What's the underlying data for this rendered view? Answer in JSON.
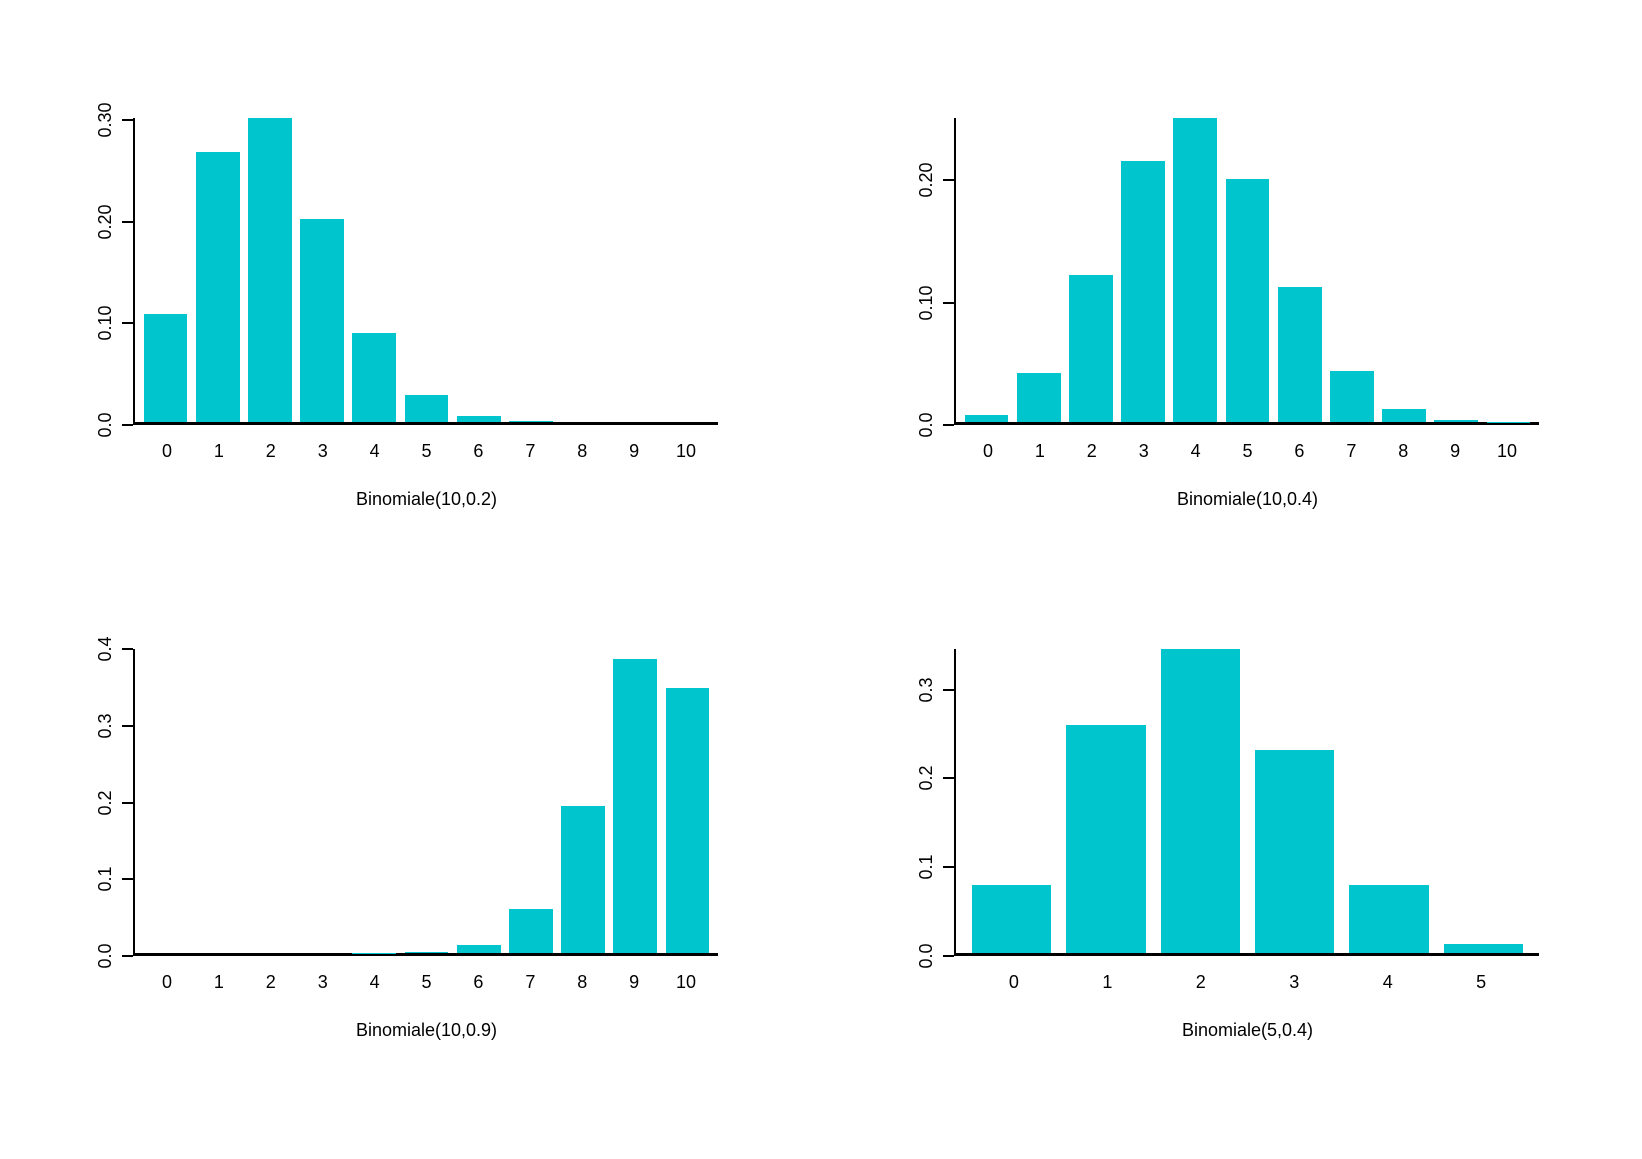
{
  "page": {
    "background": "#ffffff",
    "accent_color": "#00C5CD",
    "layout": "2x2 grid of barplots"
  },
  "chart_data": [
    {
      "type": "bar",
      "title": "",
      "xlabel": "Binomiale(10,0.2)",
      "ylabel": "",
      "categories": [
        "0",
        "1",
        "2",
        "3",
        "4",
        "5",
        "6",
        "7",
        "8",
        "9",
        "10"
      ],
      "values": [
        0.1074,
        0.2684,
        0.302,
        0.2013,
        0.0881,
        0.0264,
        0.0055,
        0.00079,
        7e-05,
        4e-06,
        1e-07
      ],
      "ylim": [
        0,
        0.302
      ],
      "ytick_values": [
        0,
        0.1,
        0.2,
        0.3
      ],
      "ytick_labels": [
        "0.0",
        "0.10",
        "0.20",
        "0.30"
      ],
      "bar_color": "#00C5CD",
      "grid": false,
      "legend": "none"
    },
    {
      "type": "bar",
      "title": "",
      "xlabel": "Binomiale(10,0.4)",
      "ylabel": "",
      "categories": [
        "0",
        "1",
        "2",
        "3",
        "4",
        "5",
        "6",
        "7",
        "8",
        "9",
        "10"
      ],
      "values": [
        0.006,
        0.0403,
        0.1209,
        0.215,
        0.2508,
        0.2007,
        0.1115,
        0.0425,
        0.0106,
        0.0016,
        0.0001
      ],
      "ylim": [
        0,
        0.2508
      ],
      "ytick_values": [
        0,
        0.1,
        0.2
      ],
      "ytick_labels": [
        "0.0",
        "0.10",
        "0.20"
      ],
      "bar_color": "#00C5CD",
      "grid": false,
      "legend": "none"
    },
    {
      "type": "bar",
      "title": "",
      "xlabel": "Binomiale(10,0.9)",
      "ylabel": "",
      "categories": [
        "0",
        "1",
        "2",
        "3",
        "4",
        "5",
        "6",
        "7",
        "8",
        "9",
        "10"
      ],
      "values": [
        0,
        0,
        4e-07,
        8.7e-06,
        0.000138,
        0.0015,
        0.0112,
        0.0574,
        0.1937,
        0.3874,
        0.3487
      ],
      "ylim": [
        0,
        0.4
      ],
      "ytick_values": [
        0,
        0.1,
        0.2,
        0.3,
        0.4
      ],
      "ytick_labels": [
        "0.0",
        "0.1",
        "0.2",
        "0.3",
        "0.4"
      ],
      "bar_color": "#00C5CD",
      "grid": false,
      "legend": "none"
    },
    {
      "type": "bar",
      "title": "",
      "xlabel": "Binomiale(5,0.4)",
      "ylabel": "",
      "categories": [
        "0",
        "1",
        "2",
        "3",
        "4",
        "5"
      ],
      "values": [
        0.0778,
        0.2592,
        0.3456,
        0.2304,
        0.0768,
        0.0102
      ],
      "ylim": [
        0,
        0.3456
      ],
      "ytick_values": [
        0,
        0.1,
        0.2,
        0.3
      ],
      "ytick_labels": [
        "0.0",
        "0.1",
        "0.2",
        "0.3"
      ],
      "bar_color": "#00C5CD",
      "grid": false,
      "legend": "none"
    }
  ]
}
